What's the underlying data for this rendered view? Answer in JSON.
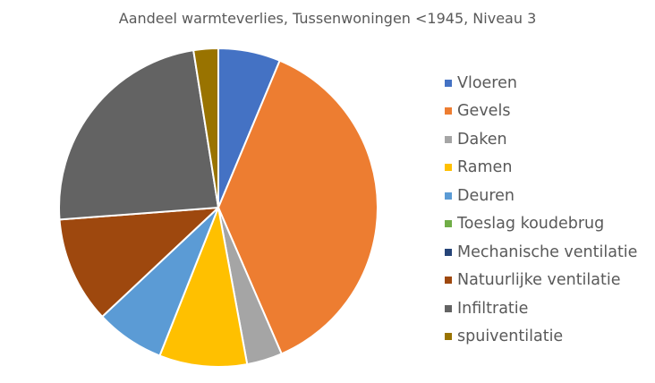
{
  "chart_data": {
    "type": "pie",
    "title": "Aandeel warmteverlies, Tussenwoningen <1945, Niveau 3",
    "legend_position": "right",
    "start_angle_deg": 0,
    "direction": "clockwise",
    "slices": [
      {
        "label": "Vloeren",
        "value": 6.3,
        "color": "#4472C4"
      },
      {
        "label": "Gevels",
        "value": 37.2,
        "color": "#ED7D31"
      },
      {
        "label": "Daken",
        "value": 3.6,
        "color": "#A5A5A5"
      },
      {
        "label": "Ramen",
        "value": 8.9,
        "color": "#FFC000"
      },
      {
        "label": "Deuren",
        "value": 7.0,
        "color": "#5B9BD5"
      },
      {
        "label": "Toeslag koudebrug",
        "value": 0.0,
        "color": "#70AD47"
      },
      {
        "label": "Mechanische ventilatie",
        "value": 0.0,
        "color": "#264478"
      },
      {
        "label": "Natuurlijke ventilatie",
        "value": 10.8,
        "color": "#9E480E"
      },
      {
        "label": "Infiltratie",
        "value": 23.7,
        "color": "#636363"
      },
      {
        "label": "spuiventilatie",
        "value": 2.5,
        "color": "#997300"
      }
    ]
  }
}
